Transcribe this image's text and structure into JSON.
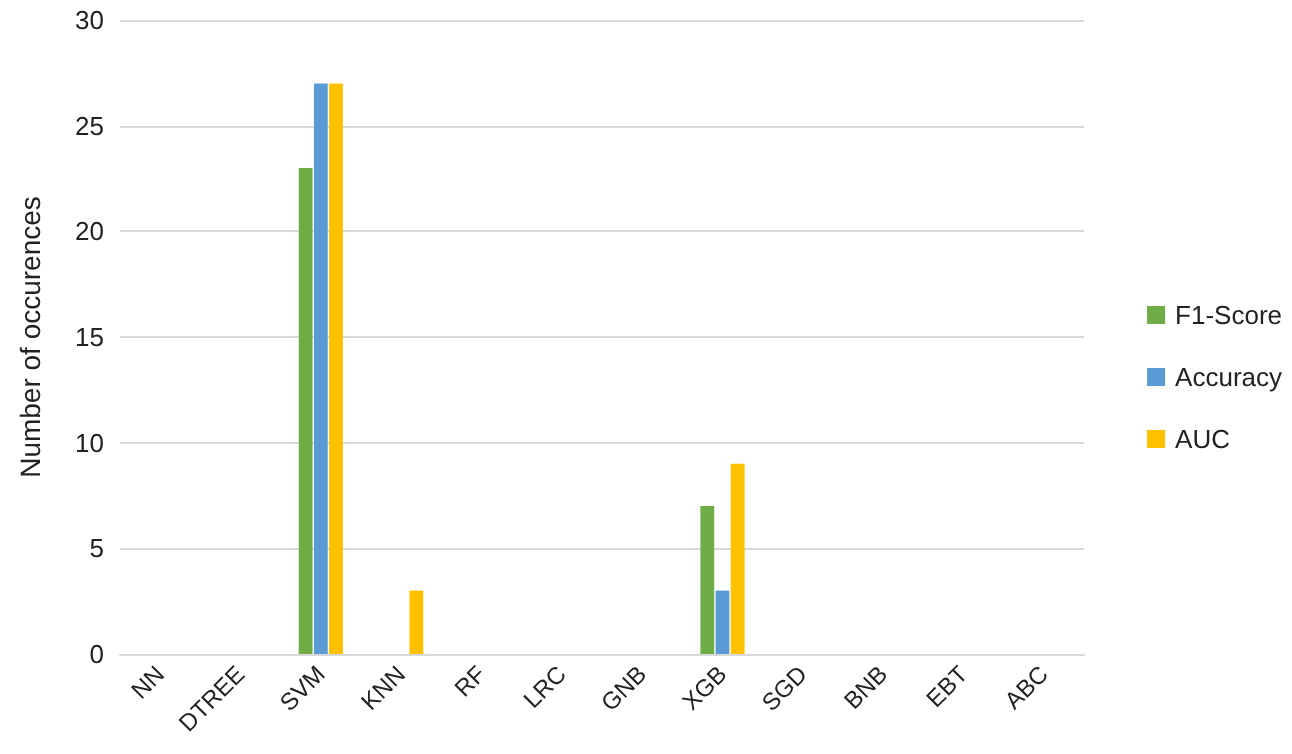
{
  "chart_data": {
    "type": "bar",
    "ylabel": "Number of occurences",
    "categories": [
      "NN",
      "DTREE",
      "SVM",
      "KNN",
      "RF",
      "LRC",
      "GNB",
      "XGB",
      "SGD",
      "BNB",
      "EBT",
      "ABC"
    ],
    "series": [
      {
        "name": "F1-Score",
        "color": "#70ad47",
        "values": [
          0,
          0,
          23,
          0,
          0,
          0,
          0,
          7,
          0,
          0,
          0,
          0
        ]
      },
      {
        "name": "Accuracy",
        "color": "#5b9bd5",
        "values": [
          0,
          0,
          27,
          0,
          0,
          0,
          0,
          3,
          0,
          0,
          0,
          0
        ]
      },
      {
        "name": "AUC",
        "color": "#ffc000",
        "values": [
          0,
          0,
          27,
          3,
          0,
          0,
          0,
          9,
          0,
          0,
          0,
          0
        ]
      }
    ],
    "ylim": [
      0,
      30
    ],
    "yticks": [
      0,
      5,
      10,
      15,
      20,
      25,
      30
    ],
    "grid": "y",
    "legend": "right"
  }
}
